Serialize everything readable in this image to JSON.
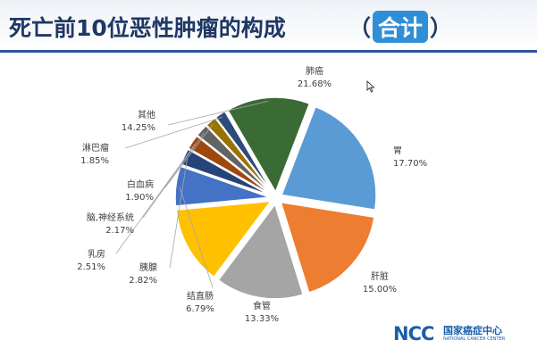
{
  "header": {
    "title": "死亡前10位恶性肿瘤的构成",
    "title_open": "（",
    "title_badge": "合计",
    "title_close": "）"
  },
  "logo": {
    "mark": "NCC",
    "name_cn": "国家癌症中心",
    "name_en": "NATIONAL CANCER CENTER"
  },
  "colors": {
    "accent": "#2f5597",
    "title": "#1f3864",
    "badge": "#2f8fd6"
  },
  "chart_data": {
    "type": "pie",
    "title": "",
    "slices": [
      {
        "label": "肺癌",
        "value": 21.68,
        "pct_text": "21.68%",
        "color": "#5b9bd5"
      },
      {
        "label": "胃",
        "value": 17.7,
        "pct_text": "17.70%",
        "color": "#ed7d31"
      },
      {
        "label": "肝脏",
        "value": 15.0,
        "pct_text": "15.00%",
        "color": "#a5a5a5"
      },
      {
        "label": "食管",
        "value": 13.33,
        "pct_text": "13.33%",
        "color": "#ffc000"
      },
      {
        "label": "结直肠",
        "value": 6.79,
        "pct_text": "6.79%",
        "color": "#4472c4"
      },
      {
        "label": "胰腺",
        "value": 2.82,
        "pct_text": "2.82%",
        "color": "#264478"
      },
      {
        "label": "乳房",
        "value": 2.51,
        "pct_text": "2.51%",
        "color": "#9e480e"
      },
      {
        "label": "脑,神经系统",
        "value": 2.17,
        "pct_text": "2.17%",
        "color": "#636363"
      },
      {
        "label": "白血病",
        "value": 1.9,
        "pct_text": "1.90%",
        "color": "#997300"
      },
      {
        "label": "淋巴瘤",
        "value": 1.85,
        "pct_text": "1.85%",
        "color": "#2e4a7a"
      },
      {
        "label": "其他",
        "value": 14.25,
        "pct_text": "14.25%",
        "color": "#3a6b35"
      }
    ],
    "legend": "none"
  }
}
